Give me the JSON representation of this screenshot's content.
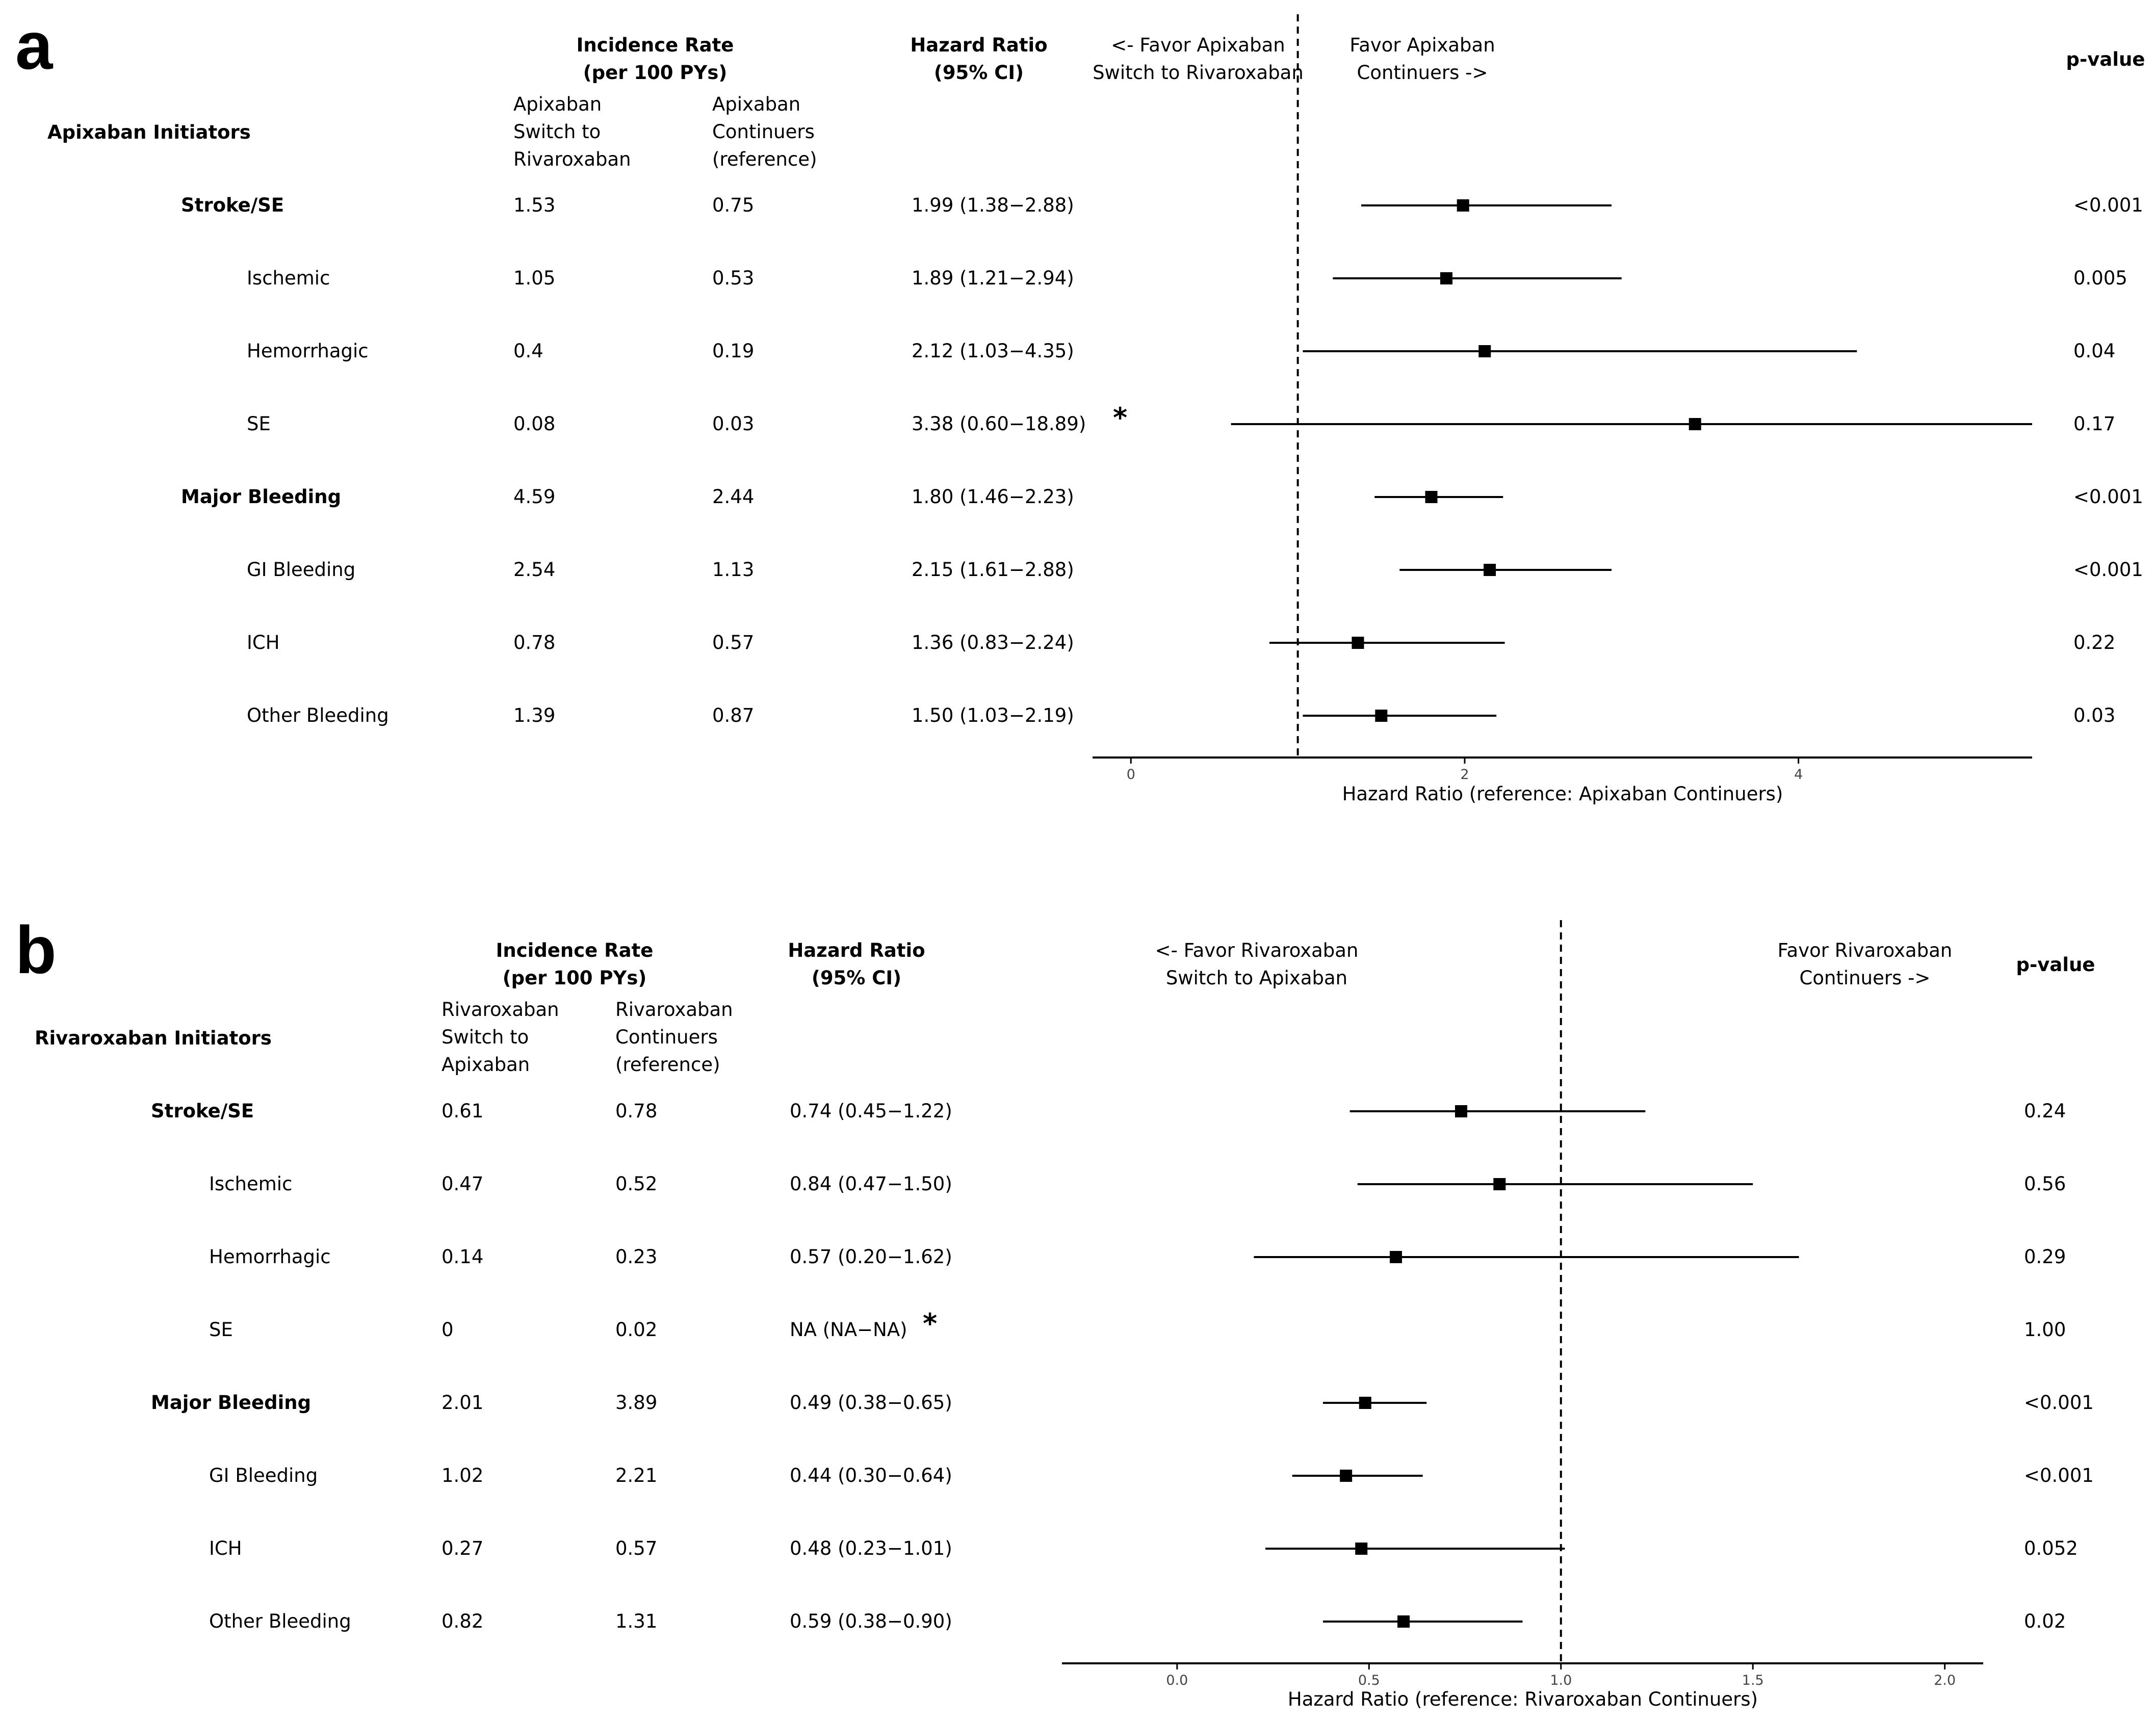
{
  "panels": [
    {
      "label": "a",
      "cohort": "Apixaban Initiators",
      "header": {
        "incidence_rate": "Incidence Rate\n(per 100 PYs)",
        "col_switch": "Apixaban\nSwitch to\nRivaroxaban",
        "col_cont": "Apixaban\nContinuers\n(reference)",
        "hazard_ratio": "Hazard Ratio\n(95% CI)",
        "favor_left": "<- Favor Apixaban\nSwitch to Rivaroxaban",
        "favor_right": "Favor Apixaban\nContinuers ->",
        "pvalue": "p-value"
      },
      "rows": [
        {
          "outcome": "Stroke/SE",
          "bold": true,
          "ir_switch": "1.53",
          "ir_cont": "0.75",
          "hr_text": "1.99 (1.38−2.88)",
          "p": "<0.001",
          "star": false
        },
        {
          "outcome": "Ischemic",
          "bold": false,
          "ir_switch": "1.05",
          "ir_cont": "0.53",
          "hr_text": "1.89 (1.21−2.94)",
          "p": "0.005",
          "star": false
        },
        {
          "outcome": "Hemorrhagic",
          "bold": false,
          "ir_switch": "0.4",
          "ir_cont": "0.19",
          "hr_text": "2.12 (1.03−4.35)",
          "p": "0.04",
          "star": false
        },
        {
          "outcome": "SE",
          "bold": false,
          "ir_switch": "0.08",
          "ir_cont": "0.03",
          "hr_text": "3.38 (0.60−18.89)",
          "p": "0.17",
          "star": true
        },
        {
          "outcome": "Major Bleeding",
          "bold": true,
          "ir_switch": "4.59",
          "ir_cont": "2.44",
          "hr_text": "1.80 (1.46−2.23)",
          "p": "<0.001",
          "star": false
        },
        {
          "outcome": "GI Bleeding",
          "bold": false,
          "ir_switch": "2.54",
          "ir_cont": "1.13",
          "hr_text": "2.15 (1.61−2.88)",
          "p": "<0.001",
          "star": false
        },
        {
          "outcome": "ICH",
          "bold": false,
          "ir_switch": "0.78",
          "ir_cont": "0.57",
          "hr_text": "1.36 (0.83−2.24)",
          "p": "0.22",
          "star": false
        },
        {
          "outcome": "Other Bleeding",
          "bold": false,
          "ir_switch": "1.39",
          "ir_cont": "0.87",
          "hr_text": "1.50 (1.03−2.19)",
          "p": "0.03",
          "star": false
        }
      ],
      "star_symbol": "*"
    },
    {
      "label": "b",
      "cohort": "Rivaroxaban Initiators",
      "header": {
        "incidence_rate": "Incidence Rate\n(per 100 PYs)",
        "col_switch": "Rivaroxaban\nSwitch to\nApixaban",
        "col_cont": "Rivaroxaban\nContinuers\n(reference)",
        "hazard_ratio": "Hazard Ratio\n(95% CI)",
        "favor_left": "<- Favor Rivaroxaban\nSwitch to Apixaban",
        "favor_right": "Favor Rivaroxaban\nContinuers ->",
        "pvalue": "p-value"
      },
      "rows": [
        {
          "outcome": "Stroke/SE",
          "bold": true,
          "ir_switch": "0.61",
          "ir_cont": "0.78",
          "hr_text": "0.74 (0.45−1.22)",
          "p": "0.24",
          "star": false
        },
        {
          "outcome": "Ischemic",
          "bold": false,
          "ir_switch": "0.47",
          "ir_cont": "0.52",
          "hr_text": "0.84 (0.47−1.50)",
          "p": "0.56",
          "star": false
        },
        {
          "outcome": "Hemorrhagic",
          "bold": false,
          "ir_switch": "0.14",
          "ir_cont": "0.23",
          "hr_text": "0.57 (0.20−1.62)",
          "p": "0.29",
          "star": false
        },
        {
          "outcome": "SE",
          "bold": false,
          "ir_switch": "0",
          "ir_cont": "0.02",
          "hr_text": "NA (NA−NA)",
          "p": "1.00",
          "star": true
        },
        {
          "outcome": "Major Bleeding",
          "bold": true,
          "ir_switch": "2.01",
          "ir_cont": "3.89",
          "hr_text": "0.49 (0.38−0.65)",
          "p": "<0.001",
          "star": false
        },
        {
          "outcome": "GI Bleeding",
          "bold": false,
          "ir_switch": "1.02",
          "ir_cont": "2.21",
          "hr_text": "0.44 (0.30−0.64)",
          "p": "<0.001",
          "star": false
        },
        {
          "outcome": "ICH",
          "bold": false,
          "ir_switch": "0.27",
          "ir_cont": "0.57",
          "hr_text": "0.48 (0.23−1.01)",
          "p": "0.052",
          "star": false
        },
        {
          "outcome": "Other Bleeding",
          "bold": false,
          "ir_switch": "0.82",
          "ir_cont": "1.31",
          "hr_text": "0.59 (0.38−0.90)",
          "p": "0.02",
          "star": false
        }
      ],
      "star_symbol": "*"
    }
  ],
  "chart_data": [
    {
      "type": "forest",
      "title": "a",
      "xlabel": "Hazard Ratio (reference: Apixaban Continuers)",
      "xticks": [
        0,
        2,
        4
      ],
      "xlim": [
        -0.23,
        5.4
      ],
      "reference_line": 1,
      "categories": [
        "Stroke/SE",
        "Ischemic",
        "Hemorrhagic",
        "SE",
        "Major Bleeding",
        "GI Bleeding",
        "ICH",
        "Other Bleeding"
      ],
      "hr": [
        1.99,
        1.89,
        2.12,
        3.38,
        1.8,
        2.15,
        1.36,
        1.5
      ],
      "lower": [
        1.38,
        1.21,
        1.03,
        0.6,
        1.46,
        1.61,
        0.83,
        1.03
      ],
      "upper": [
        2.88,
        2.94,
        4.35,
        18.89,
        2.23,
        2.88,
        2.24,
        2.19
      ],
      "clip_upper": 5.4
    },
    {
      "type": "forest",
      "title": "b",
      "xlabel": "Hazard Ratio (reference: Rivaroxaban Continuers)",
      "xticks": [
        0.0,
        0.5,
        1.0,
        1.5,
        2.0
      ],
      "xlim": [
        -0.3,
        2.1
      ],
      "reference_line": 1,
      "categories": [
        "Stroke/SE",
        "Ischemic",
        "Hemorrhagic",
        "SE",
        "Major Bleeding",
        "GI Bleeding",
        "ICH",
        "Other Bleeding"
      ],
      "hr": [
        0.74,
        0.84,
        0.57,
        null,
        0.49,
        0.44,
        0.48,
        0.59
      ],
      "lower": [
        0.45,
        0.47,
        0.2,
        null,
        0.38,
        0.3,
        0.23,
        0.38
      ],
      "upper": [
        1.22,
        1.5,
        1.62,
        null,
        0.65,
        0.64,
        1.01,
        0.9
      ],
      "clip_upper": 2.1
    }
  ]
}
